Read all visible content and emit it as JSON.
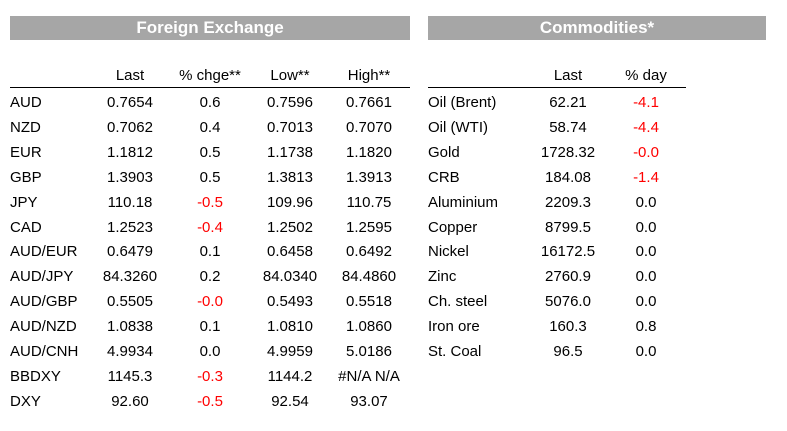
{
  "fx": {
    "title": "Foreign Exchange",
    "headers": [
      "Last",
      "% chge**",
      "Low**",
      "High**"
    ],
    "rows": [
      {
        "name": "AUD",
        "last": "0.7654",
        "chg": "0.6",
        "low": "0.7596",
        "high": "0.7661",
        "neg": false
      },
      {
        "name": "NZD",
        "last": "0.7062",
        "chg": "0.4",
        "low": "0.7013",
        "high": "0.7070",
        "neg": false
      },
      {
        "name": "EUR",
        "last": "1.1812",
        "chg": "0.5",
        "low": "1.1738",
        "high": "1.1820",
        "neg": false
      },
      {
        "name": "GBP",
        "last": "1.3903",
        "chg": "0.5",
        "low": "1.3813",
        "high": "1.3913",
        "neg": false
      },
      {
        "name": "JPY",
        "last": "110.18",
        "chg": "-0.5",
        "low": "109.96",
        "high": "110.75",
        "neg": true
      },
      {
        "name": "CAD",
        "last": "1.2523",
        "chg": "-0.4",
        "low": "1.2502",
        "high": "1.2595",
        "neg": true
      },
      {
        "name": "AUD/EUR",
        "last": "0.6479",
        "chg": "0.1",
        "low": "0.6458",
        "high": "0.6492",
        "neg": false
      },
      {
        "name": "AUD/JPY",
        "last": "84.3260",
        "chg": "0.2",
        "low": "84.0340",
        "high": "84.4860",
        "neg": false
      },
      {
        "name": "AUD/GBP",
        "last": "0.5505",
        "chg": "-0.0",
        "low": "0.5493",
        "high": "0.5518",
        "neg": true
      },
      {
        "name": "AUD/NZD",
        "last": "1.0838",
        "chg": "0.1",
        "low": "1.0810",
        "high": "1.0860",
        "neg": false
      },
      {
        "name": "AUD/CNH",
        "last": "4.9934",
        "chg": "0.0",
        "low": "4.9959",
        "high": "5.0186",
        "neg": false
      },
      {
        "name": "BBDXY",
        "last": "1145.3",
        "chg": "-0.3",
        "low": "1144.2",
        "high": "#N/A N/A",
        "neg": true
      },
      {
        "name": "DXY",
        "last": "92.60",
        "chg": "-0.5",
        "low": "92.54",
        "high": "93.07",
        "neg": true
      }
    ]
  },
  "commodities": {
    "title": "Commodities*",
    "headers": [
      "Last",
      "% day"
    ],
    "rows": [
      {
        "name": "Oil (Brent)",
        "last": "62.21",
        "chg": "-4.1",
        "neg": true
      },
      {
        "name": "Oil (WTI)",
        "last": "58.74",
        "chg": "-4.4",
        "neg": true
      },
      {
        "name": "Gold",
        "last": "1728.32",
        "chg": "-0.0",
        "neg": true
      },
      {
        "name": "CRB",
        "last": "184.08",
        "chg": "-1.4",
        "neg": true
      },
      {
        "name": "Aluminium",
        "last": "2209.3",
        "chg": "0.0",
        "neg": false
      },
      {
        "name": "Copper",
        "last": "8799.5",
        "chg": "0.0",
        "neg": false
      },
      {
        "name": "Nickel",
        "last": "16172.5",
        "chg": "0.0",
        "neg": false
      },
      {
        "name": "Zinc",
        "last": "2760.9",
        "chg": "0.0",
        "neg": false
      },
      {
        "name": "Ch. steel",
        "last": "5076.0",
        "chg": "0.0",
        "neg": false
      },
      {
        "name": "Iron ore",
        "last": "160.3",
        "chg": "0.8",
        "neg": false
      },
      {
        "name": "St. Coal",
        "last": "96.5",
        "chg": "0.0",
        "neg": false
      }
    ]
  },
  "colors": {
    "negative": "#ff0000",
    "banner": "#a6a6a6"
  }
}
